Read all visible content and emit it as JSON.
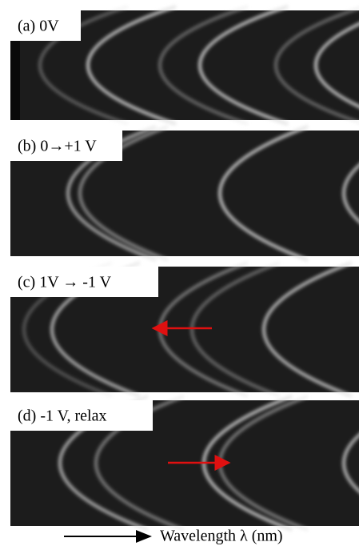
{
  "panels": [
    {
      "label": "(a) 0V"
    },
    {
      "label": "(b) 0→+1 V"
    },
    {
      "label": "(c) 1V → -1 V"
    },
    {
      "label": "(d) -1 V, relax"
    }
  ],
  "axis_label": "Wavelength λ (nm)"
}
